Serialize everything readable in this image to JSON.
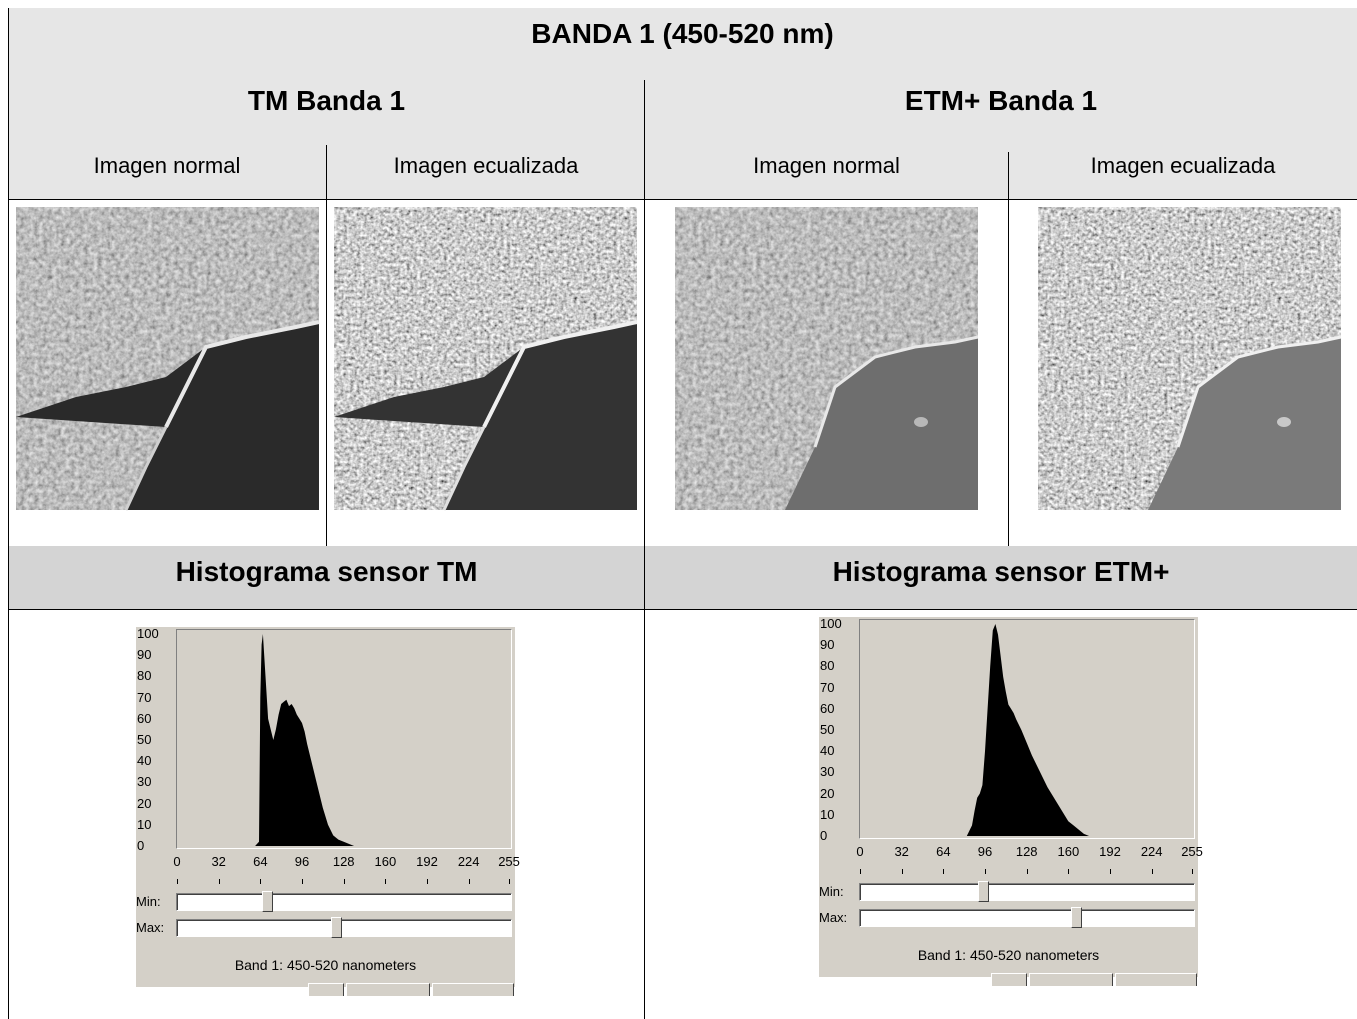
{
  "title": "BANDA 1 (450-520 nm)",
  "columns": {
    "tm": {
      "title": "TM Banda  1",
      "normal_label": "Imagen normal",
      "equalized_label": "Imagen ecualizada"
    },
    "etm": {
      "title": "ETM+ Banda  1",
      "normal_label": "Imagen normal",
      "equalized_label": "Imagen ecualizada"
    }
  },
  "histograms": {
    "tm": {
      "title": "Histograma sensor TM",
      "y_ticks": [
        "100",
        "90",
        "80",
        "70",
        "60",
        "50",
        "40",
        "30",
        "20",
        "10",
        "0"
      ],
      "x_ticks": [
        "0",
        "32",
        "64",
        "96",
        "128",
        "160",
        "192",
        "224",
        "255"
      ],
      "min_label": "Min:",
      "max_label": "Max:",
      "min_value": 0.27,
      "max_value": 0.48,
      "caption": "Band 1: 450-520 nanometers"
    },
    "etm": {
      "title": "Histograma sensor ETM+",
      "y_ticks": [
        "100",
        "90",
        "80",
        "70",
        "60",
        "50",
        "40",
        "30",
        "20",
        "10",
        "0"
      ],
      "x_ticks": [
        "0",
        "32",
        "64",
        "96",
        "128",
        "160",
        "192",
        "224",
        "255"
      ],
      "min_label": "Min:",
      "max_label": "Max:",
      "min_value": 0.37,
      "max_value": 0.65,
      "caption": "Band 1: 450-520 nanometers"
    }
  },
  "chart_data": [
    {
      "type": "area",
      "xlim": [
        0,
        255
      ],
      "ylim": [
        0,
        100
      ],
      "x": [
        60,
        63,
        64,
        65,
        66,
        67,
        68,
        70,
        72,
        74,
        76,
        78,
        80,
        82,
        84,
        86,
        88,
        90,
        92,
        94,
        96,
        98,
        100,
        104,
        108,
        112,
        116,
        120,
        124,
        128,
        132,
        136
      ],
      "values": [
        0,
        2,
        70,
        95,
        100,
        90,
        80,
        60,
        55,
        50,
        55,
        62,
        67,
        68,
        69,
        66,
        67,
        65,
        62,
        60,
        58,
        54,
        48,
        38,
        28,
        18,
        10,
        5,
        3,
        2,
        1,
        0
      ]
    },
    {
      "type": "area",
      "xlim": [
        0,
        255
      ],
      "ylim": [
        0,
        100
      ],
      "x": [
        82,
        86,
        88,
        90,
        92,
        94,
        96,
        98,
        100,
        102,
        104,
        106,
        108,
        110,
        112,
        114,
        116,
        118,
        120,
        124,
        128,
        132,
        136,
        140,
        144,
        148,
        152,
        156,
        160,
        164,
        168,
        172,
        176
      ],
      "values": [
        0,
        5,
        12,
        18,
        20,
        24,
        40,
        60,
        80,
        97,
        100,
        95,
        85,
        75,
        68,
        62,
        60,
        58,
        55,
        50,
        44,
        38,
        33,
        28,
        23,
        19,
        15,
        11,
        7,
        5,
        3,
        1,
        0
      ]
    }
  ]
}
